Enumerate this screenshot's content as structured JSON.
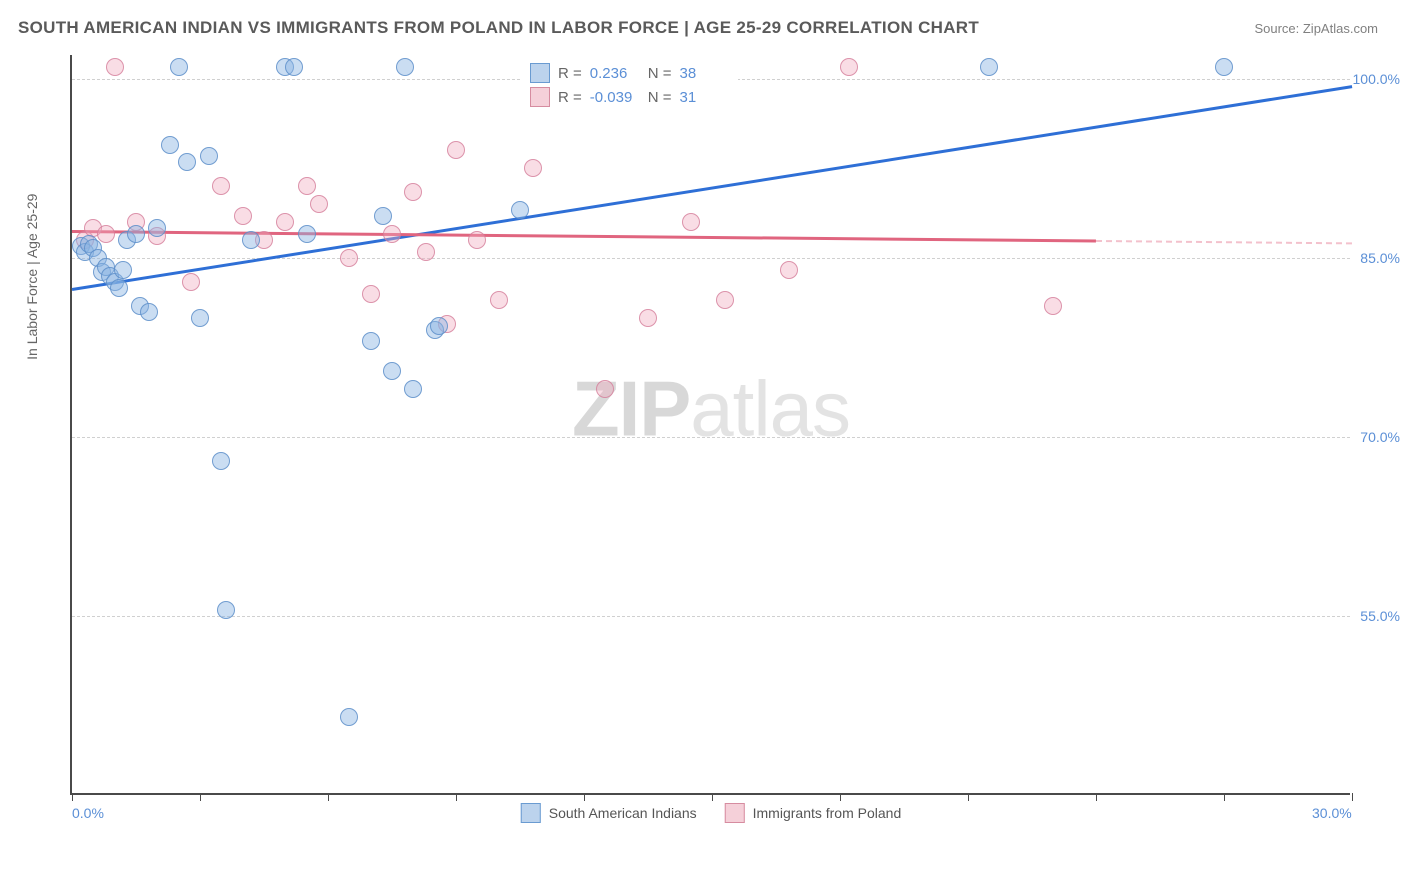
{
  "header": {
    "title": "SOUTH AMERICAN INDIAN VS IMMIGRANTS FROM POLAND IN LABOR FORCE | AGE 25-29 CORRELATION CHART",
    "source": "Source: ZipAtlas.com"
  },
  "chart": {
    "type": "scatter",
    "y_axis_title": "In Labor Force | Age 25-29",
    "watermark": {
      "zip": "ZIP",
      "atlas": "atlas"
    },
    "background_color": "#ffffff",
    "grid_color": "#d0d0d0",
    "axis_color": "#4a4a4a",
    "tick_label_color": "#5b8fd6",
    "xlim": [
      0,
      30
    ],
    "ylim": [
      40,
      102
    ],
    "y_ticks": [
      {
        "value": 100,
        "label": "100.0%"
      },
      {
        "value": 85,
        "label": "85.0%"
      },
      {
        "value": 70,
        "label": "70.0%"
      },
      {
        "value": 55,
        "label": "55.0%"
      }
    ],
    "x_ticks": [
      {
        "value": 0,
        "label": "0.0%"
      },
      {
        "value": 3,
        "label": ""
      },
      {
        "value": 6,
        "label": ""
      },
      {
        "value": 9,
        "label": ""
      },
      {
        "value": 12,
        "label": ""
      },
      {
        "value": 15,
        "label": ""
      },
      {
        "value": 18,
        "label": ""
      },
      {
        "value": 21,
        "label": ""
      },
      {
        "value": 24,
        "label": ""
      },
      {
        "value": 27,
        "label": ""
      },
      {
        "value": 30,
        "label": "30.0%"
      }
    ],
    "legend_top": [
      {
        "swatch": "blue",
        "r_label": "R =",
        "r_value": "0.236",
        "n_label": "N =",
        "n_value": "38"
      },
      {
        "swatch": "pink",
        "r_label": "R =",
        "r_value": "-0.039",
        "n_label": "N =",
        "n_value": "31"
      }
    ],
    "legend_bottom": [
      {
        "swatch": "blue",
        "label": "South American Indians"
      },
      {
        "swatch": "pink",
        "label": "Immigrants from Poland"
      }
    ],
    "marker_radius": 9,
    "series": {
      "blue": {
        "color_fill": "rgba(138,180,226,0.45)",
        "color_stroke": "rgba(90,140,200,0.8)",
        "trend": {
          "x1": 0,
          "y1": 82.5,
          "x2": 30,
          "y2": 99.5,
          "color": "#2e6fd6"
        },
        "points": [
          {
            "x": 0.2,
            "y": 86
          },
          {
            "x": 0.3,
            "y": 85.5
          },
          {
            "x": 0.4,
            "y": 86.2
          },
          {
            "x": 0.5,
            "y": 85.8
          },
          {
            "x": 0.6,
            "y": 85.0
          },
          {
            "x": 0.7,
            "y": 83.8
          },
          {
            "x": 0.8,
            "y": 84.2
          },
          {
            "x": 0.9,
            "y": 83.5
          },
          {
            "x": 1.0,
            "y": 83.0
          },
          {
            "x": 1.1,
            "y": 82.5
          },
          {
            "x": 1.2,
            "y": 84.0
          },
          {
            "x": 1.3,
            "y": 86.5
          },
          {
            "x": 1.5,
            "y": 87.0
          },
          {
            "x": 1.6,
            "y": 81.0
          },
          {
            "x": 1.8,
            "y": 80.5
          },
          {
            "x": 2.0,
            "y": 87.5
          },
          {
            "x": 2.3,
            "y": 94.5
          },
          {
            "x": 2.5,
            "y": 101.0
          },
          {
            "x": 2.7,
            "y": 93.0
          },
          {
            "x": 3.0,
            "y": 80.0
          },
          {
            "x": 3.2,
            "y": 93.5
          },
          {
            "x": 3.5,
            "y": 68.0
          },
          {
            "x": 3.6,
            "y": 55.5
          },
          {
            "x": 4.2,
            "y": 86.5
          },
          {
            "x": 5.0,
            "y": 101.0
          },
          {
            "x": 5.2,
            "y": 101.0
          },
          {
            "x": 5.5,
            "y": 87.0
          },
          {
            "x": 6.5,
            "y": 46.5
          },
          {
            "x": 7.0,
            "y": 78.0
          },
          {
            "x": 7.3,
            "y": 88.5
          },
          {
            "x": 7.5,
            "y": 75.5
          },
          {
            "x": 7.8,
            "y": 101.0
          },
          {
            "x": 8.0,
            "y": 74.0
          },
          {
            "x": 8.5,
            "y": 79.0
          },
          {
            "x": 8.6,
            "y": 79.3
          },
          {
            "x": 10.5,
            "y": 89.0
          },
          {
            "x": 21.5,
            "y": 101.0
          },
          {
            "x": 27.0,
            "y": 101.0
          }
        ]
      },
      "pink": {
        "color_fill": "rgba(240,170,190,0.4)",
        "color_stroke": "rgba(210,120,150,0.75)",
        "trend": {
          "x1": 0,
          "y1": 87.3,
          "x2": 24,
          "y2": 86.5,
          "color": "#e0657f",
          "dash_x1": 24,
          "dash_y1": 86.5,
          "dash_x2": 30,
          "dash_y2": 86.3
        },
        "points": [
          {
            "x": 0.3,
            "y": 86.5
          },
          {
            "x": 0.5,
            "y": 87.5
          },
          {
            "x": 0.8,
            "y": 87.0
          },
          {
            "x": 1.0,
            "y": 101.0
          },
          {
            "x": 1.5,
            "y": 88.0
          },
          {
            "x": 2.0,
            "y": 86.8
          },
          {
            "x": 2.8,
            "y": 83.0
          },
          {
            "x": 3.5,
            "y": 91.0
          },
          {
            "x": 4.0,
            "y": 88.5
          },
          {
            "x": 4.5,
            "y": 86.5
          },
          {
            "x": 5.0,
            "y": 88.0
          },
          {
            "x": 5.5,
            "y": 91.0
          },
          {
            "x": 5.8,
            "y": 89.5
          },
          {
            "x": 6.5,
            "y": 85.0
          },
          {
            "x": 7.0,
            "y": 82.0
          },
          {
            "x": 7.5,
            "y": 87.0
          },
          {
            "x": 8.0,
            "y": 90.5
          },
          {
            "x": 8.3,
            "y": 85.5
          },
          {
            "x": 8.8,
            "y": 79.5
          },
          {
            "x": 9.0,
            "y": 94.0
          },
          {
            "x": 9.5,
            "y": 86.5
          },
          {
            "x": 10.0,
            "y": 81.5
          },
          {
            "x": 10.8,
            "y": 92.5
          },
          {
            "x": 11.0,
            "y": 101.0
          },
          {
            "x": 12.5,
            "y": 74.0
          },
          {
            "x": 13.5,
            "y": 80.0
          },
          {
            "x": 14.5,
            "y": 88.0
          },
          {
            "x": 15.3,
            "y": 81.5
          },
          {
            "x": 16.8,
            "y": 84.0
          },
          {
            "x": 18.2,
            "y": 101.0
          },
          {
            "x": 23.0,
            "y": 81.0
          }
        ]
      }
    }
  }
}
